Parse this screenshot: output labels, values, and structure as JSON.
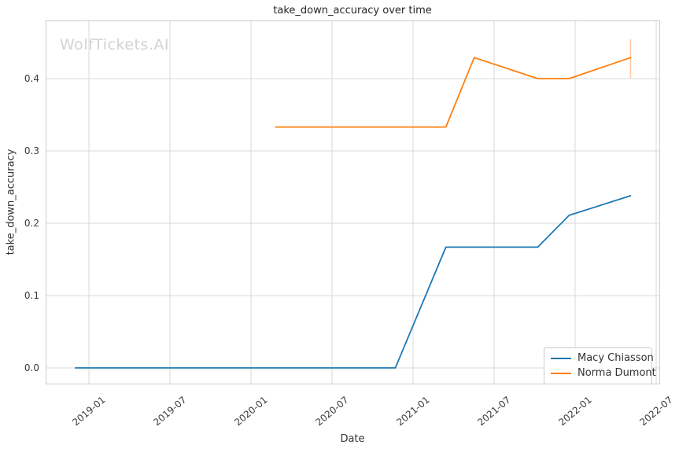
{
  "title": "take_down_accuracy over time",
  "watermark": "WolfTickets.AI",
  "colors": {
    "background": "#ffffff",
    "grid": "#d9d9d9",
    "spine": "#cccccc",
    "tick_text": "#3a3a3a",
    "title_text": "#262626",
    "watermark_text": "#d2d2d2",
    "series_blue": "#1f77b4",
    "series_orange": "#ff7f0e",
    "error_bar": "#ffc9a0"
  },
  "chart_data": {
    "type": "line",
    "title": "take_down_accuracy over time",
    "xlabel": "Date",
    "ylabel": "take_down_accuracy",
    "x_ticks": [
      "2019-01",
      "2019-07",
      "2020-01",
      "2020-07",
      "2021-01",
      "2021-07",
      "2022-01",
      "2022-07"
    ],
    "y_ticks": [
      0.0,
      0.1,
      0.2,
      0.3,
      0.4
    ],
    "xlim": [
      "2018-09-25",
      "2022-07-09"
    ],
    "ylim": [
      -0.023,
      0.478
    ],
    "grid": true,
    "legend_position": "lower right",
    "series": [
      {
        "name": "Macy Chiasson",
        "color": "#1f77b4",
        "points": [
          [
            "2018-12-01",
            0.0
          ],
          [
            "2020-11-22",
            0.0
          ],
          [
            "2021-03-14",
            0.167
          ],
          [
            "2021-10-08",
            0.167
          ],
          [
            "2021-12-18",
            0.211
          ],
          [
            "2022-05-04",
            0.238
          ]
        ]
      },
      {
        "name": "Norma Dumont",
        "color": "#ff7f0e",
        "points": [
          [
            "2020-02-26",
            0.333
          ],
          [
            "2021-03-14",
            0.333
          ],
          [
            "2021-05-17",
            0.429
          ],
          [
            "2021-10-08",
            0.4
          ],
          [
            "2021-12-18",
            0.4
          ],
          [
            "2022-05-04",
            0.429
          ]
        ],
        "error_bar": {
          "date": "2022-05-04",
          "lo": 0.401,
          "hi": 0.455
        }
      }
    ]
  },
  "legend": {
    "entries": [
      "Macy Chiasson",
      "Norma Dumont"
    ]
  }
}
